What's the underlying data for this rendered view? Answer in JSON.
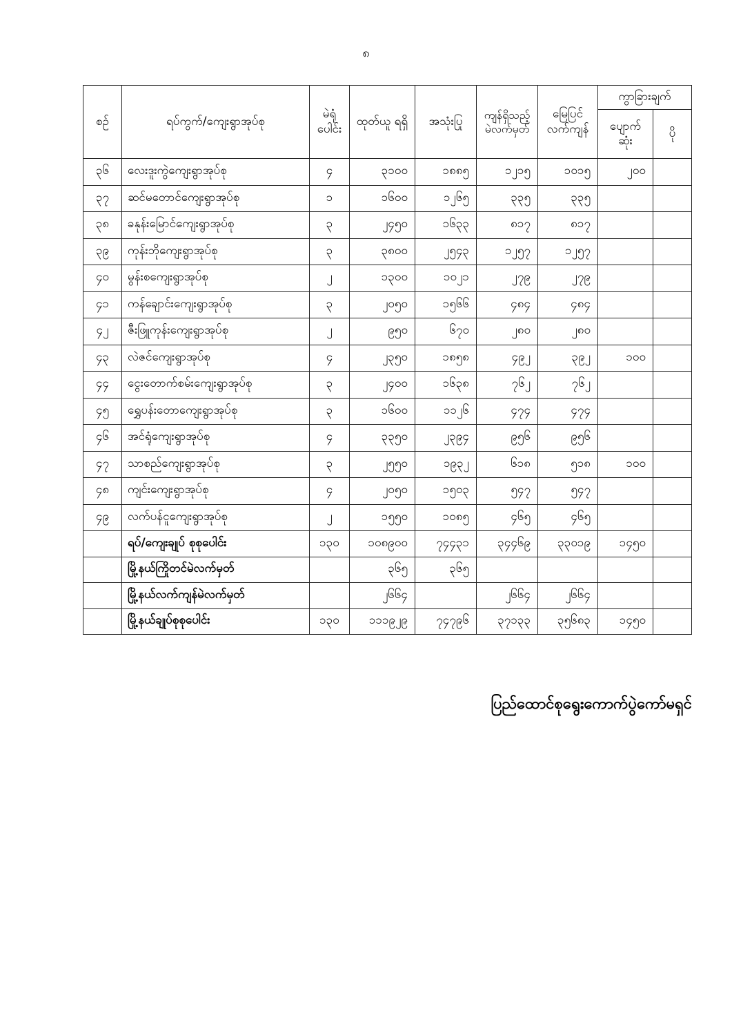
{
  "page_number": "၈",
  "table": {
    "headers": {
      "no": "စဉ်",
      "name": "ရပ်ကွက်/ကျေးရွာအုပ်စု",
      "booths": "မဲရုံ ပေါင်း",
      "issued": "ထုတ်ယူ ရရှိ",
      "used": "အသုံးပြု",
      "remaining": "ကျန်ရှိသည့် မဲလက်မှတ်",
      "actual_remaining": "မြေပြင် လက်ကျန်",
      "difference": "ကွာခြားချက်",
      "lost": "ပျောက် ဆုံး",
      "extra": "ပို"
    },
    "rows": [
      {
        "no": "၃၆",
        "name": "လေးဒူးကွဲကျေးရွာအုပ်စု",
        "booths": "၄",
        "issued": "၃၁၀၀",
        "used": "၁၈၈၅",
        "remaining": "၁၂၁၅",
        "actual": "၁၀၁၅",
        "lost": "၂၀၀",
        "extra": ""
      },
      {
        "no": "၃၇",
        "name": "ဆင်မတောင်ကျေးရွာအုပ်စု",
        "booths": "၁",
        "issued": "၁၆၀၀",
        "used": "၁၂၆၅",
        "remaining": "၃၃၅",
        "actual": "၃၃၅",
        "lost": "",
        "extra": ""
      },
      {
        "no": "၃၈",
        "name": "ခနုန်းမြောင်ကျေးရွာအုပ်စု",
        "booths": "၃",
        "issued": "၂၄၅၀",
        "used": "၁၆၃၃",
        "remaining": "၈၁၇",
        "actual": "၈၁၇",
        "lost": "",
        "extra": ""
      },
      {
        "no": "၃၉",
        "name": "ကုန်းဘိုကျေးရွာအုပ်စု",
        "booths": "၃",
        "issued": "၃၈၀၀",
        "used": "၂၅၄၃",
        "remaining": "၁၂၅၇",
        "actual": "၁၂၅၇",
        "lost": "",
        "extra": ""
      },
      {
        "no": "၄၀",
        "name": "မွန်းစကျေးရွာအုပ်စု",
        "booths": "၂",
        "issued": "၁၃၀၀",
        "used": "၁၀၂၁",
        "remaining": "၂၇၉",
        "actual": "၂၇၉",
        "lost": "",
        "extra": ""
      },
      {
        "no": "၄၁",
        "name": "ကန်ချောင်းကျေးရွာအုပ်စု",
        "booths": "၃",
        "issued": "၂၀၅၀",
        "used": "၁၅၆၆",
        "remaining": "၄၈၄",
        "actual": "၄၈၄",
        "lost": "",
        "extra": ""
      },
      {
        "no": "၄၂",
        "name": "ဇီးဖြူကုန်းကျေးရွာအုပ်စု",
        "booths": "၂",
        "issued": "၉၅၀",
        "used": "၆၇၀",
        "remaining": "၂၈၀",
        "actual": "၂၈၀",
        "lost": "",
        "extra": ""
      },
      {
        "no": "၄၃",
        "name": "လဲဇင်ကျေးရွာအုပ်စု",
        "booths": "၄",
        "issued": "၂၃၅၀",
        "used": "၁၈၅၈",
        "remaining": "၄၉၂",
        "actual": "၃၉၂",
        "lost": "၁၀၀",
        "extra": ""
      },
      {
        "no": "၄၄",
        "name": "ငွေးတောက်စမ်းကျေးရွာအုပ်စု",
        "booths": "၃",
        "issued": "၂၄၀၀",
        "used": "၁၆၃၈",
        "remaining": "၇၆၂",
        "actual": "၇၆၂",
        "lost": "",
        "extra": ""
      },
      {
        "no": "၄၅",
        "name": "ရွှေပန်းတောကျေးရွာအုပ်စု",
        "booths": "၃",
        "issued": "၁၆၀၀",
        "used": "၁၁၂၆",
        "remaining": "၄၇၄",
        "actual": "၄၇၄",
        "lost": "",
        "extra": ""
      },
      {
        "no": "၄၆",
        "name": "အင်ရုံကျေးရွာအုပ်စု",
        "booths": "၄",
        "issued": "၃၃၅၀",
        "used": "၂၃၉၄",
        "remaining": "၉၅၆",
        "actual": "၉၅၆",
        "lost": "",
        "extra": ""
      },
      {
        "no": "၄၇",
        "name": "သာစည်ကျေးရွာအုပ်စု",
        "booths": "၃",
        "issued": "၂၅၅၀",
        "used": "၁၉၃၂",
        "remaining": "၆၁၈",
        "actual": "၅၁၈",
        "lost": "၁၀၀",
        "extra": ""
      },
      {
        "no": "၄၈",
        "name": "ကျင်းကျေးရွာအုပ်စု",
        "booths": "၄",
        "issued": "၂၀၅၀",
        "used": "၁၅၀၃",
        "remaining": "၅၄၇",
        "actual": "၅၄၇",
        "lost": "",
        "extra": ""
      },
      {
        "no": "၄၉",
        "name": "လက်ပန်ငူကျေးရွာအုပ်စု",
        "booths": "၂",
        "issued": "၁၅၅၀",
        "used": "၁၀၈၅",
        "remaining": "၄၆၅",
        "actual": "၄၆၅",
        "lost": "",
        "extra": ""
      }
    ],
    "totals": [
      {
        "label": "ရပ်/ကျေးချုပ် စုစုပေါင်း",
        "booths": "၁၃၀",
        "issued": "၁၀၈၉၀၀",
        "used": "၇၄၄၃၁",
        "remaining": "၃၄၄၆၉",
        "actual": "၃၃၀၁၉",
        "lost": "၁၄၅၀",
        "extra": ""
      },
      {
        "label": "မြို့နယ်ကြိုတင်မဲလက်မှတ်",
        "booths": "",
        "issued": "၃၆၅",
        "used": "၃၆၅",
        "remaining": "",
        "actual": "",
        "lost": "",
        "extra": ""
      },
      {
        "label": "မြို့နယ်လက်ကျန်မဲလက်မှတ်",
        "booths": "",
        "issued": "၂၆၆၄",
        "used": "",
        "remaining": "၂၆၆၄",
        "actual": "၂၆၆၄",
        "lost": "",
        "extra": ""
      },
      {
        "label": "မြို့နယ်ချုပ်စုစုပေါင်း",
        "booths": "၁၃၀",
        "issued": "၁၁၁၉၂၉",
        "used": "၇၄၇၉၆",
        "remaining": "၃၇၁၃၃",
        "actual": "၃၅၆၈၃",
        "lost": "၁၄၅၀",
        "extra": ""
      }
    ]
  },
  "footer": {
    "signature": "ပြည်ထောင်စုရွေးကောက်ပွဲကော်မရှင်"
  }
}
